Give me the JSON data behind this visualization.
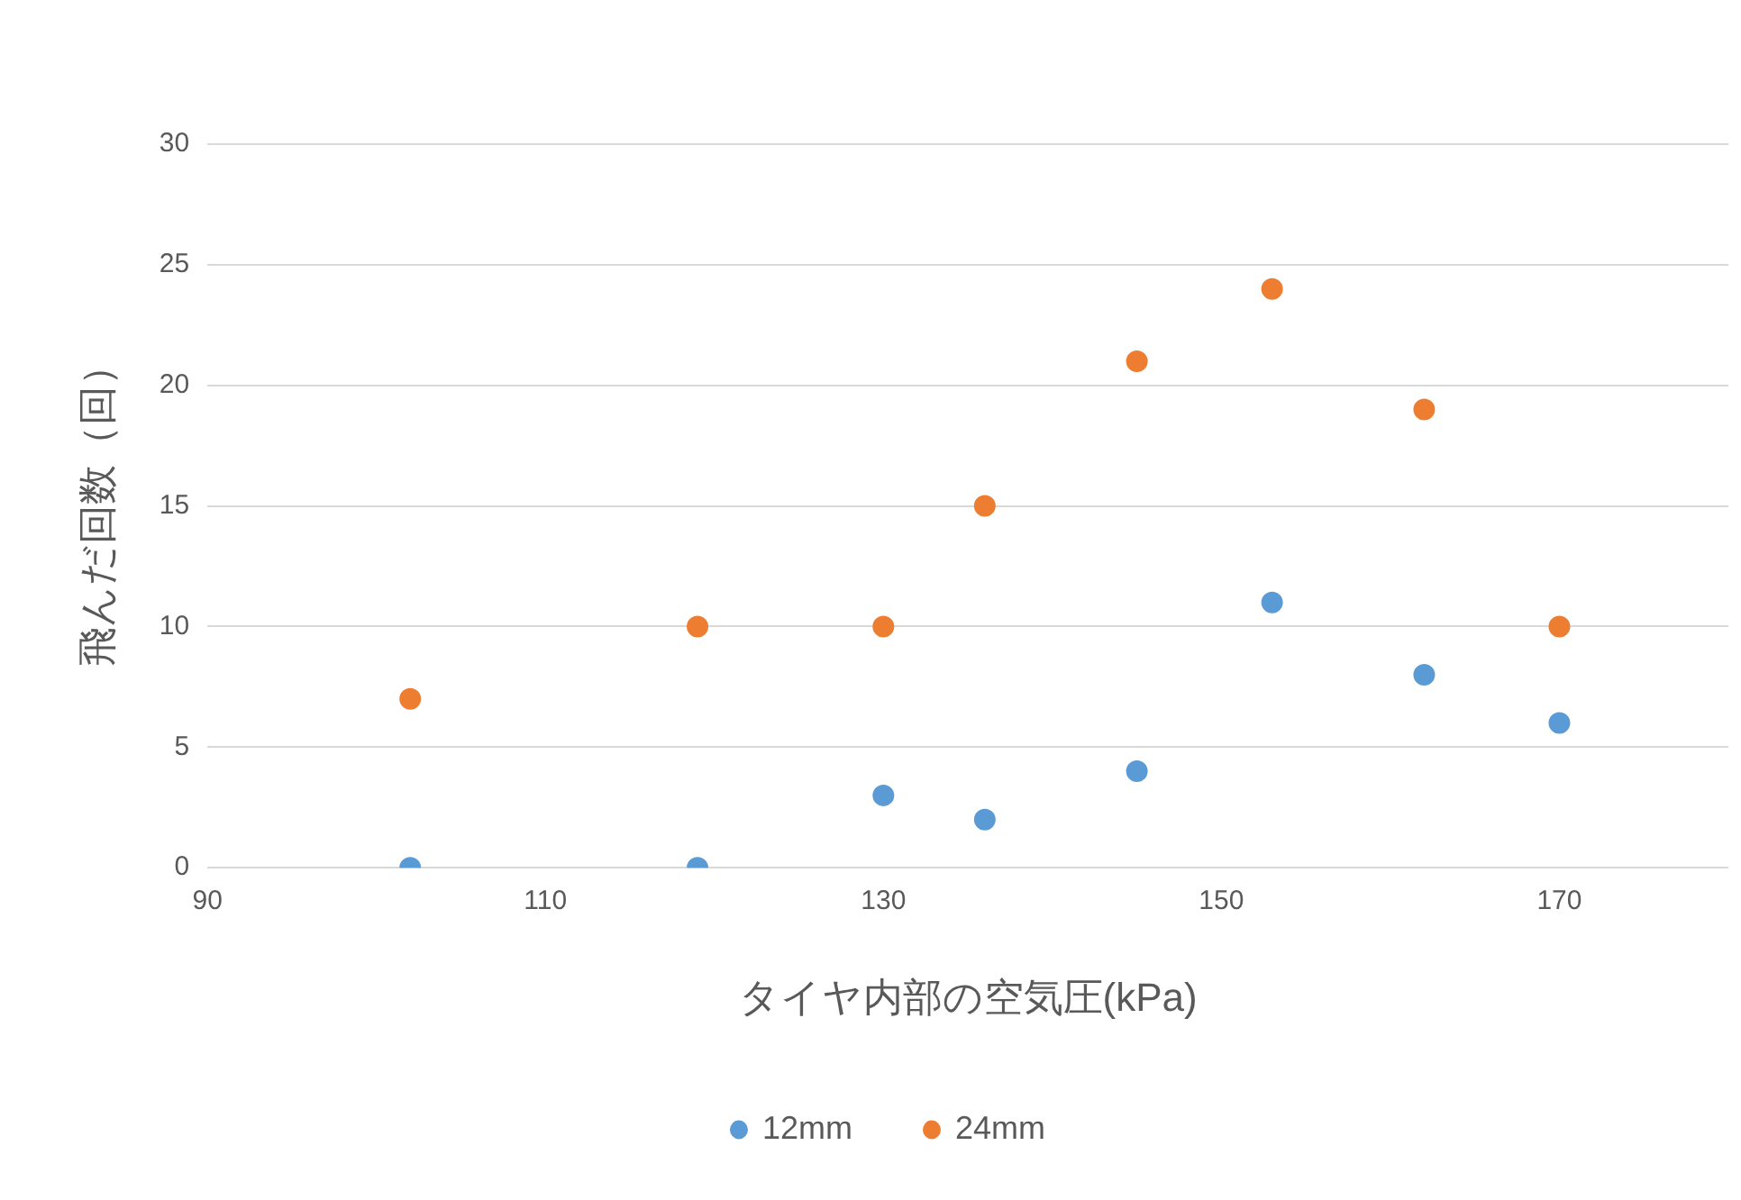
{
  "chart_data": {
    "type": "scatter",
    "xlabel": "タイヤ内部の空気圧(kPa)",
    "ylabel": "飛んだ回数（回）",
    "x": [
      102,
      119,
      130,
      136,
      145,
      153,
      162,
      170
    ],
    "series": [
      {
        "name": "12mm",
        "color": "#5b9bd5",
        "values": [
          0,
          0,
          3,
          2,
          4,
          11,
          8,
          6
        ]
      },
      {
        "name": "24mm",
        "color": "#ed7d31",
        "values": [
          7,
          10,
          10,
          15,
          21,
          24,
          19,
          10
        ]
      }
    ],
    "xlim": [
      90,
      180
    ],
    "xticks": [
      90,
      110,
      130,
      150,
      170
    ],
    "ylim": [
      0,
      30
    ],
    "yticks": [
      0,
      5,
      10,
      15,
      20,
      25,
      30
    ],
    "grid": "y",
    "legend": "bottom",
    "marker": "circle"
  }
}
